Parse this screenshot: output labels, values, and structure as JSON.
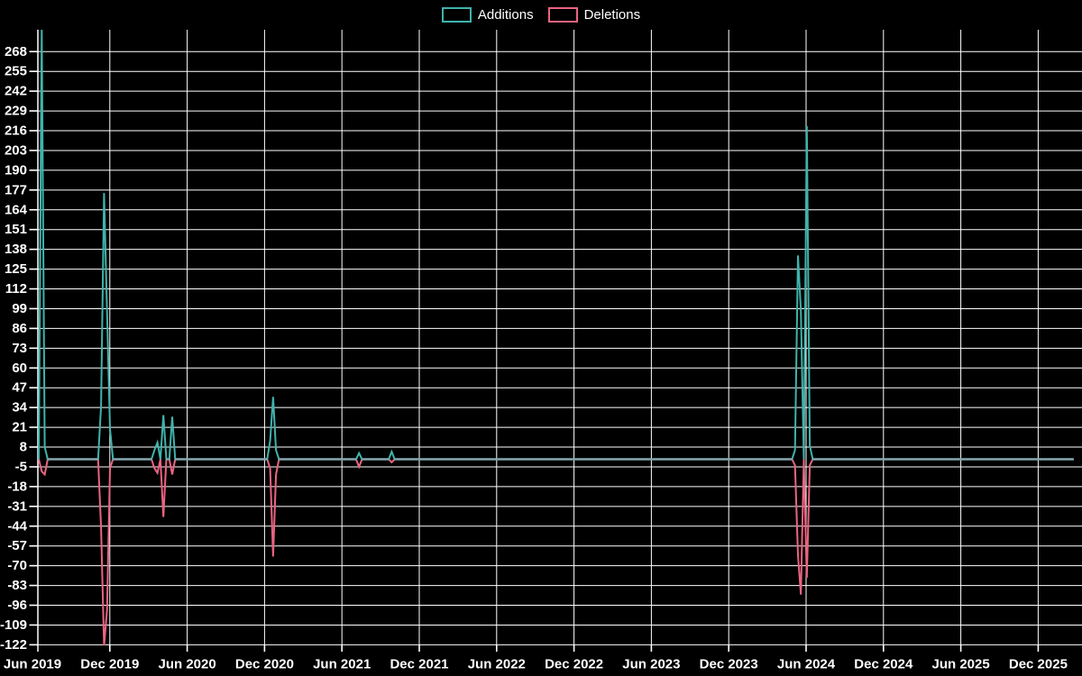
{
  "legend": {
    "additions_label": "Additions",
    "deletions_label": "Deletions"
  },
  "colors": {
    "additions": "#3fb3ac",
    "deletions": "#ea6480",
    "zero_line_overlap": "#87a7b0",
    "grid": "#ffffff",
    "text": "#ffffff",
    "background": "#000000"
  },
  "chart_data": {
    "type": "line",
    "title": "",
    "xlabel": "",
    "ylabel": "",
    "legend_position": "top-center",
    "grid": true,
    "x_axis": {
      "tick_labels": [
        "Jun 2019",
        "Dec 2019",
        "Jun 2020",
        "Dec 2020",
        "Jun 2021",
        "Dec 2021",
        "Jun 2022",
        "Dec 2022",
        "Jun 2023",
        "Dec 2023",
        "Jun 2024",
        "Dec 2024",
        "Jun 2025",
        "Dec 2025"
      ],
      "data_start": "2019-06-16",
      "data_end": "2026-02-22",
      "sampling": "weekly"
    },
    "y_axis": {
      "ticks": [
        268,
        255,
        242,
        229,
        216,
        203,
        190,
        177,
        164,
        151,
        138,
        125,
        112,
        99,
        86,
        73,
        60,
        47,
        34,
        21,
        8,
        -5,
        -18,
        -31,
        -44,
        -57,
        -70,
        -83,
        -96,
        -109,
        -122
      ],
      "visible_min": -126,
      "visible_max": 282
    },
    "series_names": [
      "Additions",
      "Deletions"
    ],
    "baseline_value": 0,
    "weekly_events": [
      {
        "week": "2019-06-23",
        "additions": 283,
        "deletions": -8,
        "clipped": "top"
      },
      {
        "week": "2019-06-30",
        "additions": 8,
        "deletions": -10
      },
      {
        "week": "2019-11-10",
        "additions": 35,
        "deletions": -45
      },
      {
        "week": "2019-11-17",
        "additions": 175,
        "deletions": -123,
        "clipped": "bottom"
      },
      {
        "week": "2019-11-24",
        "additions": 97,
        "deletions": -99
      },
      {
        "week": "2019-12-01",
        "additions": 20,
        "deletions": -6
      },
      {
        "week": "2020-03-15",
        "additions": 6,
        "deletions": -6
      },
      {
        "week": "2020-03-22",
        "additions": 11,
        "deletions": -9
      },
      {
        "week": "2020-04-05",
        "additions": 29,
        "deletions": -38
      },
      {
        "week": "2020-04-26",
        "additions": 28,
        "deletions": -10
      },
      {
        "week": "2020-12-13",
        "additions": 12,
        "deletions": -6
      },
      {
        "week": "2020-12-20",
        "additions": 41,
        "deletions": -64
      },
      {
        "week": "2020-12-27",
        "additions": 6,
        "deletions": -10
      },
      {
        "week": "2021-07-11",
        "additions": 4,
        "deletions": -5
      },
      {
        "week": "2021-09-26",
        "additions": 5,
        "deletions": -2
      },
      {
        "week": "2024-05-05",
        "additions": 6,
        "deletions": -4
      },
      {
        "week": "2024-05-12",
        "additions": 134,
        "deletions": -63
      },
      {
        "week": "2024-05-19",
        "additions": 98,
        "deletions": -89
      },
      {
        "week": "2024-06-02",
        "additions": 219,
        "deletions": -78
      },
      {
        "week": "2024-06-09",
        "additions": 9,
        "deletions": -4
      }
    ]
  }
}
